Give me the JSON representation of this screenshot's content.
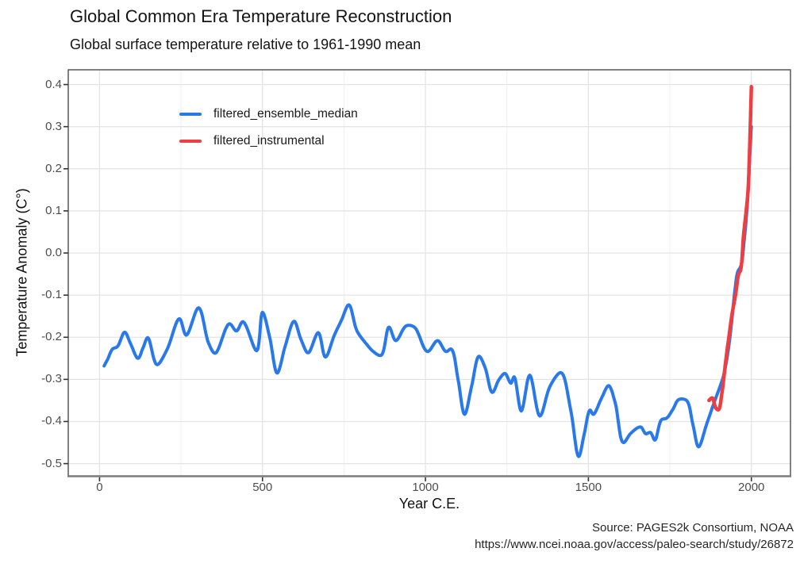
{
  "page": {
    "title": "Global Common Era Temperature Reconstruction",
    "subtitle": "Global surface temperature relative to 1961-1990 mean",
    "caption_line1": "Source: PAGES2k Consortium, NOAA",
    "caption_line2": "https://www.ncei.noaa.gov/access/paleo-search/study/26872"
  },
  "colors": {
    "background": "#FFFFFF",
    "grid_major": "#E4E4E4",
    "grid_minor": "#EFEFEF",
    "panel_border": "#3F3F3F",
    "bottom_axis_line": "#7D7D7D",
    "tick_mark": "#333333",
    "tick_label": "#4D4D4D",
    "text": "#111111",
    "series_blue": "#2979EB",
    "series_red": "#EF3E41"
  },
  "chart_data": {
    "type": "line",
    "title": "Global Common Era Temperature Reconstruction",
    "subtitle": "Global surface temperature relative to 1961-1990 mean",
    "xlabel": "Year C.E.",
    "ylabel": "Temperature Anomaly (C°)",
    "caption": "Source: PAGES2k Consortium, NOAA | https://www.ncei.noaa.gov/access/paleo-search/study/26872",
    "xlim": [
      -96,
      2120
    ],
    "ylim": [
      -0.529,
      0.435
    ],
    "grid": "y-major, x-major and x-minor, no y-minor",
    "x_axis": {
      "ticks": [
        0,
        500,
        1000,
        1500,
        2000
      ],
      "minor_gridlines": [
        250,
        750,
        1250,
        1750
      ]
    },
    "y_axis": {
      "tick_labels": [
        "0.4",
        "0.3",
        "0.2",
        "0.1",
        "0.0",
        "-0.1",
        "-0.2",
        "-0.3",
        "-0.4",
        "-0.5"
      ]
    },
    "legend": {
      "position": "inside-top-left",
      "entries": [
        {
          "label": "filtered_ensemble_median",
          "color": "#2979EB"
        },
        {
          "label": "filtered_instrumental",
          "color": "#EF3E41"
        }
      ]
    },
    "series": [
      {
        "name": "filtered_ensemble_median",
        "color": "#2979EB",
        "width": 4,
        "points": [
          [
            14,
            -0.268
          ],
          [
            25,
            -0.252
          ],
          [
            40,
            -0.228
          ],
          [
            55,
            -0.222
          ],
          [
            77,
            -0.188
          ],
          [
            95,
            -0.215
          ],
          [
            118,
            -0.25
          ],
          [
            133,
            -0.226
          ],
          [
            148,
            -0.201
          ],
          [
            176,
            -0.265
          ],
          [
            206,
            -0.231
          ],
          [
            245,
            -0.156
          ],
          [
            266,
            -0.195
          ],
          [
            304,
            -0.13
          ],
          [
            335,
            -0.215
          ],
          [
            355,
            -0.238
          ],
          [
            398,
            -0.168
          ],
          [
            420,
            -0.185
          ],
          [
            440,
            -0.163
          ],
          [
            482,
            -0.232
          ],
          [
            500,
            -0.141
          ],
          [
            522,
            -0.2
          ],
          [
            545,
            -0.285
          ],
          [
            570,
            -0.22
          ],
          [
            597,
            -0.162
          ],
          [
            618,
            -0.205
          ],
          [
            640,
            -0.237
          ],
          [
            671,
            -0.189
          ],
          [
            693,
            -0.247
          ],
          [
            720,
            -0.196
          ],
          [
            742,
            -0.16
          ],
          [
            765,
            -0.123
          ],
          [
            790,
            -0.185
          ],
          [
            820,
            -0.217
          ],
          [
            840,
            -0.234
          ],
          [
            864,
            -0.243
          ],
          [
            888,
            -0.176
          ],
          [
            909,
            -0.208
          ],
          [
            941,
            -0.173
          ],
          [
            966,
            -0.176
          ],
          [
            1006,
            -0.234
          ],
          [
            1037,
            -0.208
          ],
          [
            1063,
            -0.234
          ],
          [
            1079,
            -0.228
          ],
          [
            1100,
            -0.3
          ],
          [
            1120,
            -0.383
          ],
          [
            1142,
            -0.315
          ],
          [
            1164,
            -0.245
          ],
          [
            1183,
            -0.272
          ],
          [
            1205,
            -0.331
          ],
          [
            1226,
            -0.3
          ],
          [
            1244,
            -0.286
          ],
          [
            1262,
            -0.309
          ],
          [
            1272,
            -0.294
          ],
          [
            1294,
            -0.375
          ],
          [
            1320,
            -0.29
          ],
          [
            1351,
            -0.387
          ],
          [
            1383,
            -0.315
          ],
          [
            1416,
            -0.284
          ],
          [
            1445,
            -0.37
          ],
          [
            1470,
            -0.483
          ],
          [
            1487,
            -0.43
          ],
          [
            1505,
            -0.373
          ],
          [
            1515,
            -0.383
          ],
          [
            1540,
            -0.345
          ],
          [
            1562,
            -0.315
          ],
          [
            1582,
            -0.355
          ],
          [
            1607,
            -0.45
          ],
          [
            1630,
            -0.428
          ],
          [
            1660,
            -0.413
          ],
          [
            1676,
            -0.429
          ],
          [
            1690,
            -0.426
          ],
          [
            1704,
            -0.444
          ],
          [
            1724,
            -0.396
          ],
          [
            1740,
            -0.392
          ],
          [
            1760,
            -0.37
          ],
          [
            1777,
            -0.348
          ],
          [
            1801,
            -0.35
          ],
          [
            1820,
            -0.405
          ],
          [
            1838,
            -0.46
          ],
          [
            1862,
            -0.408
          ],
          [
            1883,
            -0.361
          ],
          [
            1900,
            -0.325
          ],
          [
            1915,
            -0.29
          ],
          [
            1930,
            -0.225
          ],
          [
            1940,
            -0.16
          ],
          [
            1950,
            -0.085
          ],
          [
            1958,
            -0.045
          ],
          [
            1968,
            -0.03
          ],
          [
            1978,
            0.03
          ],
          [
            1988,
            0.12
          ],
          [
            1994,
            0.215
          ],
          [
            2000,
            0.3
          ]
        ]
      },
      {
        "name": "filtered_instrumental",
        "color": "#EF3E41",
        "width": 4.5,
        "points": [
          [
            1870,
            -0.35
          ],
          [
            1880,
            -0.344
          ],
          [
            1891,
            -0.368
          ],
          [
            1899,
            -0.372
          ],
          [
            1910,
            -0.33
          ],
          [
            1920,
            -0.265
          ],
          [
            1930,
            -0.205
          ],
          [
            1940,
            -0.149
          ],
          [
            1952,
            -0.096
          ],
          [
            1961,
            -0.05
          ],
          [
            1967,
            -0.04
          ],
          [
            1976,
            0.042
          ],
          [
            1984,
            0.099
          ],
          [
            1990,
            0.15
          ],
          [
            1994,
            0.23
          ],
          [
            1997,
            0.31
          ],
          [
            1999,
            0.365
          ],
          [
            2000,
            0.395
          ]
        ]
      }
    ]
  }
}
